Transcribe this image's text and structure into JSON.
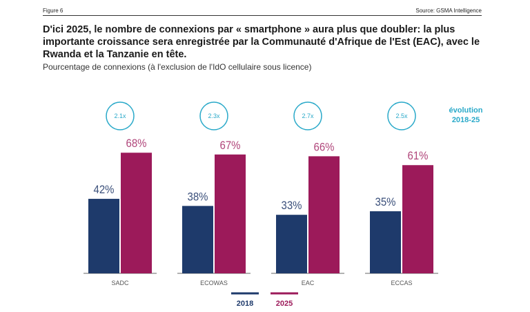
{
  "header": {
    "figure": "Figure 6",
    "source": "Source: GSMA Intelligence",
    "title": "D'ici 2025, le nombre de connexions par « smartphone » aura plus que doubler: la plus importante croissance sera enregistrée par la Communauté d'Afrique de l'Est (EAC), avec le Rwanda et la Tanzanie en tête.",
    "subtitle": "Pourcentage de connexions (à l'exclusion de l'IdO cellulaire sous licence)"
  },
  "chart_data": {
    "type": "bar",
    "categories": [
      "SADC",
      "ECOWAS",
      "EAC",
      "ECCAS"
    ],
    "series": [
      {
        "name": "2018",
        "values": [
          42,
          38,
          33,
          35
        ],
        "labels": [
          "42%",
          "38%",
          "33%",
          "35%"
        ],
        "color": "#1e3a6b"
      },
      {
        "name": "2025",
        "values": [
          68,
          67,
          66,
          61
        ],
        "labels": [
          "68%",
          "67%",
          "66%",
          "61%"
        ],
        "color": "#9c1a5a"
      }
    ],
    "growth": {
      "label_line1": "évolution",
      "label_line2": "2018-25",
      "values": [
        "2.1x",
        "2.3x",
        "2.7x",
        "2.5x"
      ],
      "color": "#29a9c9"
    },
    "ylim": [
      0,
      100
    ],
    "grid": false,
    "legend": "bottom"
  }
}
